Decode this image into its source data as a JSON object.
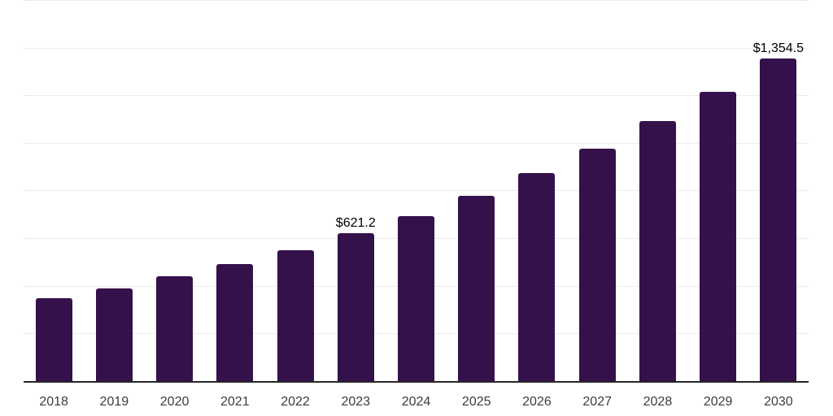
{
  "page": {
    "background_color": "#ffffff"
  },
  "chart_data": {
    "type": "bar",
    "title": "",
    "xlabel": "",
    "ylabel": "",
    "categories": [
      "2018",
      "2019",
      "2020",
      "2021",
      "2022",
      "2023",
      "2024",
      "2025",
      "2026",
      "2027",
      "2028",
      "2029",
      "2030"
    ],
    "values": [
      347,
      389,
      440,
      492,
      548,
      621.2,
      694,
      777,
      872,
      975,
      1090,
      1215,
      1354.5
    ],
    "data_labels": [
      "",
      "",
      "",
      "",
      "",
      "$621.2",
      "",
      "",
      "",
      "",
      "",
      "",
      "$1,354.5"
    ],
    "ylim": [
      0,
      1600
    ],
    "gridline_step": 200,
    "grid": "horizontal",
    "legend": "none",
    "y_tick_labels_visible": false,
    "bar_color": "#35114C",
    "axis_line_color": "#262626",
    "gridline_color": "#ececec",
    "tick_label_color": "#3b3b3b",
    "data_label_color": "#000000"
  }
}
